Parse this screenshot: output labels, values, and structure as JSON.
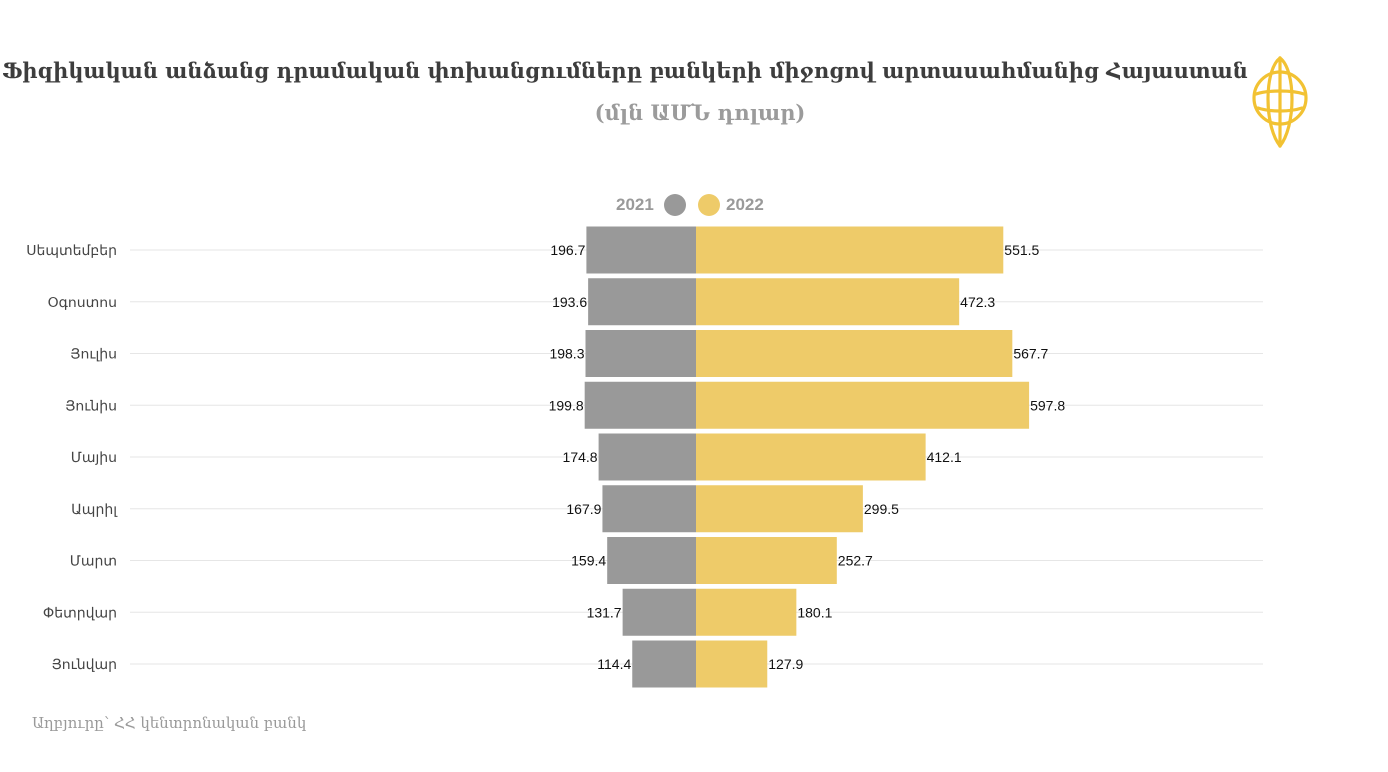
{
  "title": "Ֆիզիկական անձանց դրամական փոխանցումները բանկերի միջոցով  արտասահմանից Հայաստան",
  "subtitle": "(մլն ԱՄՆ դոլար)",
  "source": "Աղբյուրը՝ ՀՀ կենտրոնական բանկ",
  "logo_icon": "globe-logo-icon",
  "colors": {
    "series_2021": "#999999",
    "series_2022": "#eecb69",
    "grid": "#e6e6e6",
    "logo": "#f2c233"
  },
  "chart_data": {
    "type": "bar",
    "orientation": "horizontal-butterfly",
    "title": "Ֆիզիկական անձանց դրամական փոխանցումները բանկերի միջոցով  արտասահմանից Հայաստան",
    "subtitle": "(մլն ԱՄՆ դոլար)",
    "legend_position": "top-center",
    "grid": true,
    "categories": [
      "Սեպտեմբեր",
      "Օգոստոս",
      "Յուլիս",
      "Յունիս",
      "Մայիս",
      "Ապրիլ",
      "Մարտ",
      "Փետրվար",
      "Յունվար"
    ],
    "series": [
      {
        "name": "2021",
        "side": "left",
        "color": "#999999",
        "values": [
          196.7,
          193.6,
          198.3,
          199.8,
          174.8,
          167.9,
          159.4,
          131.7,
          114.4
        ]
      },
      {
        "name": "2022",
        "side": "right",
        "color": "#eecb69",
        "values": [
          551.5,
          472.3,
          567.7,
          597.8,
          412.1,
          299.5,
          252.7,
          180.1,
          127.9
        ]
      }
    ]
  }
}
